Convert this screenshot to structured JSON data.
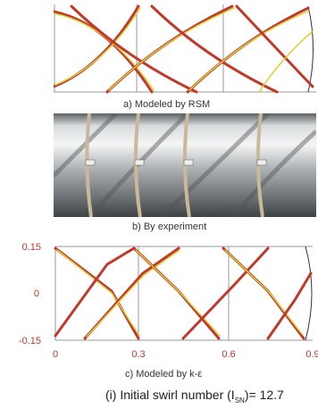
{
  "panels": {
    "a": {
      "caption": "a)   Modeled by RSM"
    },
    "b": {
      "caption": "b)   By experiment"
    },
    "c": {
      "caption": "c)   Modeled by k-ε",
      "y_ticks": [
        "0.15",
        "0",
        "-0.15"
      ],
      "x_ticks": [
        "0",
        "0.3",
        "0.6",
        "0.9"
      ]
    }
  },
  "figure_caption": "(i)  Initial swirl number (I",
  "figure_caption_sub": "SN",
  "figure_caption_end": ")= 12.7",
  "colors": {
    "streak_red": "#c0392b",
    "streak_yellow": "#d8d23a",
    "axis_tick_red": "#c0392b",
    "pipe_gray": "#8a8f92"
  }
}
